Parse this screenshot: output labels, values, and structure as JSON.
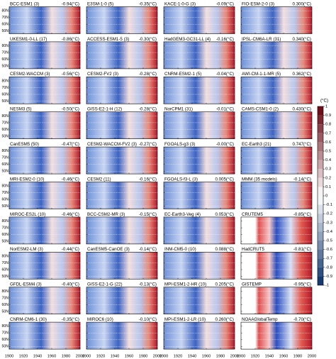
{
  "chart_data": {
    "type": "heatmap-panels",
    "xlim": [
      1900,
      2000
    ],
    "xticks": [
      1900,
      1920,
      1940,
      1960,
      1980,
      2000
    ],
    "ylim": [
      46,
      86
    ],
    "yticks": [
      {
        "value": 80,
        "label": "80N"
      },
      {
        "value": 70,
        "label": "70N"
      },
      {
        "value": 60,
        "label": "60N"
      },
      {
        "value": 50,
        "label": "50N"
      }
    ],
    "grid": true,
    "panels": [
      {
        "title": "BCC-ESM1 (3)",
        "label": "-0.94(°C)",
        "kind": "model"
      },
      {
        "title": "E3SM-1-0 (5)",
        "label": "-0.35(°C)",
        "kind": "model"
      },
      {
        "title": "KACE-1-0-G (3)",
        "label": "-0.09(°C)",
        "kind": "model"
      },
      {
        "title": "FIO-ESM-2-0 (3)",
        "label": "0.300(°C)",
        "kind": "model"
      },
      {
        "title": "UKESM1-0-LL (17)",
        "label": "-0.86(°C)",
        "kind": "model"
      },
      {
        "title": "ACCESS-ESM1-5 (3)",
        "label": "-0.30(°C)",
        "kind": "model"
      },
      {
        "title": "HadGEM3-GC31-LL (4)",
        "label": "-0.16(°C)",
        "kind": "model"
      },
      {
        "title": "IPSL-CM6A-LR (31)",
        "label": "0.340(°C)",
        "kind": "model"
      },
      {
        "title": "CESM2-WACCM (3)",
        "label": "-0.56(°C)",
        "kind": "model"
      },
      {
        "title": "CESM2-FV2 (3)",
        "label": "-0.28(°C)",
        "kind": "model"
      },
      {
        "title": "CNRM-ESM2-1 (5)",
        "label": "-0.04(°C)",
        "kind": "model"
      },
      {
        "title": "AWI-CM-1-1-MR (5)",
        "label": "0.362(°C)",
        "kind": "model"
      },
      {
        "title": "NESM3 (5)",
        "label": "-0.50(°C)",
        "kind": "model"
      },
      {
        "title": "GISS-E2-1-H (12)",
        "label": "-0.28(°C)",
        "kind": "model"
      },
      {
        "title": "NorCPM1 (31)",
        "label": "-0.01(°C)",
        "kind": "model"
      },
      {
        "title": "CAMS-CSM1-0 (2)",
        "label": "0.430(°C)",
        "kind": "model"
      },
      {
        "title": "CanESM5 (50)",
        "label": "-0.47(°C)",
        "kind": "model"
      },
      {
        "title": "CESM2-WACCM-FV2 (3)",
        "label": "-0.27(°C)",
        "kind": "model"
      },
      {
        "title": "FGOALS-g3 (3)",
        "label": "-0.00(°C)",
        "kind": "model"
      },
      {
        "title": "EC-Earth3 (21)",
        "label": "0.747(°C)",
        "kind": "model"
      },
      {
        "title": "MRI-ESM2-0 (10)",
        "label": "-0.46(°C)",
        "kind": "model"
      },
      {
        "title": "CESM2 (11)",
        "label": "-0.16(°C)",
        "kind": "model"
      },
      {
        "title": "FGOALS-f3-L (3)",
        "label": "0.005(°C)",
        "kind": "model"
      },
      {
        "title": "MMM (35 models)",
        "label": "-0.14(°C)",
        "kind": "model"
      },
      {
        "title": "MIROC-ES2L (10)",
        "label": "-0.46(°C)",
        "kind": "model"
      },
      {
        "title": "BCC-CSM2-MR (3)",
        "label": "-0.15(°C)",
        "kind": "model"
      },
      {
        "title": "EC-Earth3-Veg (4)",
        "label": "0.053(°C)",
        "kind": "model"
      },
      {
        "title": "CRUTEM5",
        "label": "-0.85(°C)",
        "kind": "obs"
      },
      {
        "title": "NorESM2-LM (3)",
        "label": "-0.44(°C)",
        "kind": "model"
      },
      {
        "title": "CanESM5-CanOE (3)",
        "label": "-0.14(°C)",
        "kind": "model"
      },
      {
        "title": "INM-CM5-0 (10)",
        "label": "0.088(°C)",
        "kind": "model"
      },
      {
        "title": "HadCRUT5",
        "label": "-0.81(°C)",
        "kind": "obs"
      },
      {
        "title": "GFDL-ESM4 (3)",
        "label": "-0.40(°C)",
        "kind": "model"
      },
      {
        "title": "GISS-E2-1-G (22)",
        "label": "-0.13(°C)",
        "kind": "model"
      },
      {
        "title": "MPI-ESM1-2-HR (10)",
        "label": "0.205(°C)",
        "kind": "model"
      },
      {
        "title": "GISTEMP",
        "label": "-0.95(°C)",
        "kind": "obs"
      },
      {
        "title": "CNRM-CM6-1 (30)",
        "label": "-0.35(°C)",
        "kind": "model"
      },
      {
        "title": "MIROC6 (10)",
        "label": "-0.10(°C)",
        "kind": "model"
      },
      {
        "title": "MPI-ESM1-2-LR (10)",
        "label": "0.260(°C)",
        "kind": "model"
      },
      {
        "title": "NOAAGlobalTemp",
        "label": "-0.70(°C)",
        "kind": "obs"
      }
    ],
    "colorbar": {
      "label": "(°C)",
      "lim": [
        -1,
        1
      ],
      "ticks": [
        1,
        0.9,
        0.8,
        0.7,
        0.6,
        0.5,
        0.4,
        0.3,
        0.2,
        0.1,
        0,
        -0.1,
        -0.2,
        -0.3,
        -0.4,
        -0.5,
        -0.6,
        -0.7,
        -0.8,
        -0.9,
        -1
      ]
    }
  }
}
